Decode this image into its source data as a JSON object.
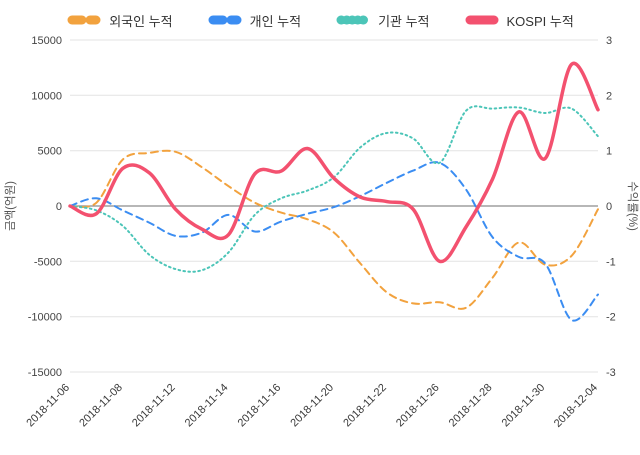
{
  "legend": {
    "items": [
      {
        "key": "foreign",
        "label": "외국인 누적",
        "color": "#f2a23e",
        "dash": "10 8"
      },
      {
        "key": "individual",
        "label": "개인 누적",
        "color": "#3b8df2",
        "dash": "10 8"
      },
      {
        "key": "institution",
        "label": "기관 누적",
        "color": "#4cc5b8",
        "dash": "0.5 5"
      },
      {
        "key": "kospi",
        "label": "KOSPI 누적",
        "color": "#f3516f",
        "dash": "none"
      }
    ]
  },
  "axes": {
    "left_title": "금액(억원)",
    "right_title": "수익률(%)",
    "left_ticks": [
      15000,
      10000,
      5000,
      0,
      -5000,
      -10000,
      -15000
    ],
    "right_ticks": [
      3,
      2,
      1,
      0,
      -1,
      -2,
      -3
    ]
  },
  "chart_data": {
    "type": "line",
    "title": "",
    "ylabel_left": "금액(억원)",
    "ylabel_right": "수익률(%)",
    "left_ylim": [
      -15000,
      15000
    ],
    "right_ylim": [
      -3,
      3
    ],
    "grid": "horizontal",
    "legend_position": "top",
    "x_tick_every": 2,
    "x": [
      "2018-11-06",
      "2018-11-07",
      "2018-11-08",
      "2018-11-09",
      "2018-11-12",
      "2018-11-13",
      "2018-11-14",
      "2018-11-15",
      "2018-11-16",
      "2018-11-19",
      "2018-11-20",
      "2018-11-21",
      "2018-11-22",
      "2018-11-23",
      "2018-11-26",
      "2018-11-27",
      "2018-11-28",
      "2018-11-29",
      "2018-11-30",
      "2018-12-03",
      "2018-12-04"
    ],
    "x_tick_labels": [
      "2018-11-06",
      "2018-11-08",
      "2018-11-12",
      "2018-11-14",
      "2018-11-16",
      "2018-11-20",
      "2018-11-22",
      "2018-11-26",
      "2018-11-28",
      "2018-11-30",
      "2018-12-04"
    ],
    "series": [
      {
        "key": "foreign",
        "name": "외국인 누적",
        "axis": "left",
        "unit": "억원",
        "color": "#f2a23e",
        "style": "dashed",
        "values": [
          0,
          300,
          4200,
          4800,
          4900,
          3500,
          1800,
          300,
          -600,
          -1200,
          -2400,
          -5200,
          -7800,
          -8800,
          -8700,
          -9200,
          -6500,
          -3300,
          -5300,
          -4500,
          -300
        ]
      },
      {
        "key": "individual",
        "name": "개인 누적",
        "axis": "left",
        "unit": "억원",
        "color": "#3b8df2",
        "style": "dashed",
        "values": [
          0,
          700,
          -400,
          -1500,
          -2700,
          -2400,
          -800,
          -2300,
          -1400,
          -700,
          -100,
          900,
          2100,
          3200,
          3900,
          1500,
          -2800,
          -4600,
          -5200,
          -10300,
          -8000
        ]
      },
      {
        "key": "institution",
        "name": "기관 누적",
        "axis": "left",
        "unit": "억원",
        "color": "#4cc5b8",
        "style": "dotted",
        "values": [
          0,
          -400,
          -1800,
          -4400,
          -5700,
          -5800,
          -4200,
          -800,
          700,
          1400,
          2600,
          5300,
          6600,
          6100,
          3900,
          8600,
          8800,
          8900,
          8400,
          8800,
          6300
        ]
      },
      {
        "key": "kospi",
        "name": "KOSPI 누적",
        "axis": "right",
        "unit": "%",
        "color": "#f3516f",
        "style": "solid",
        "values": [
          0,
          -0.14,
          0.68,
          0.6,
          -0.06,
          -0.42,
          -0.52,
          0.58,
          0.63,
          1.04,
          0.5,
          0.16,
          0.08,
          -0.06,
          -1.0,
          -0.38,
          0.48,
          1.7,
          0.86,
          2.56,
          1.74
        ]
      }
    ]
  }
}
